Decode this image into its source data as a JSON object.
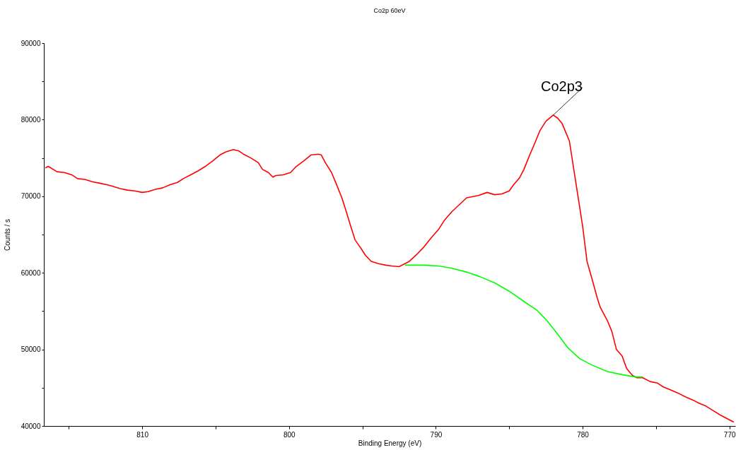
{
  "chart_data": {
    "type": "line",
    "title": "Co2p 60eV",
    "xlabel": "Binding Energy (eV)",
    "ylabel": "Counts / s",
    "xlim": [
      816.7,
      769.6
    ],
    "ylim": [
      40000,
      90000
    ],
    "xticks": [
      {
        "value": 815,
        "label": null
      },
      810,
      {
        "value": 805,
        "label": null
      },
      800,
      {
        "value": 795,
        "label": null
      },
      790,
      {
        "value": 785,
        "label": null
      },
      780,
      {
        "value": 775,
        "label": null
      },
      770
    ],
    "yticks": [
      40000,
      {
        "value": 45000,
        "label": null
      },
      50000,
      {
        "value": 55000,
        "label": null
      },
      60000,
      {
        "value": 65000,
        "label": null
      },
      70000,
      {
        "value": 75000,
        "label": null
      },
      80000,
      {
        "value": 85000,
        "label": null
      },
      90000
    ],
    "grid": false,
    "legend": false,
    "marker": "none",
    "line_style": "solid",
    "annotations": [
      {
        "text": "Co2p3",
        "x": 782.0,
        "y": 80600
      }
    ],
    "series": [
      {
        "color": "#ff0000",
        "x": [
          816.6,
          816.4,
          815.8,
          815.3,
          814.8,
          814.4,
          813.9,
          813.4,
          812.9,
          812.4,
          812.0,
          811.5,
          811.0,
          810.5,
          810.0,
          809.6,
          809.1,
          808.6,
          808.1,
          807.6,
          807.2,
          806.7,
          806.2,
          805.7,
          805.2,
          804.7,
          804.3,
          803.8,
          803.4,
          803.1,
          802.6,
          802.1,
          801.8,
          801.4,
          801.1,
          800.9,
          800.4,
          799.9,
          799.5,
          799.0,
          798.5,
          798.0,
          797.8,
          797.5,
          797.1,
          796.8,
          796.4,
          796.1,
          795.8,
          795.5,
          795.1,
          794.8,
          794.4,
          793.9,
          793.4,
          793.0,
          792.5,
          792.2,
          791.8,
          791.3,
          790.8,
          790.3,
          789.8,
          789.4,
          788.9,
          788.4,
          787.9,
          787.1,
          786.5,
          786.0,
          785.5,
          785.0,
          784.7,
          784.3,
          784.0,
          783.6,
          783.2,
          782.9,
          782.5,
          782.0,
          781.7,
          781.4,
          781.2,
          780.9,
          780.6,
          780.3,
          780.0,
          779.7,
          779.3,
          779.0,
          778.8,
          778.3,
          778.0,
          777.7,
          777.3,
          777.0,
          776.6,
          776.3,
          775.9,
          775.4,
          774.9,
          774.5,
          774.0,
          773.5,
          773.0,
          772.5,
          772.1,
          771.6,
          771.1,
          770.6,
          770.1,
          769.7
        ],
        "values": [
          73700,
          73900,
          73200,
          73100,
          72800,
          72300,
          72200,
          71900,
          71700,
          71500,
          71300,
          71000,
          70800,
          70700,
          70500,
          70600,
          70900,
          71100,
          71500,
          71800,
          72300,
          72800,
          73300,
          73900,
          74600,
          75400,
          75800,
          76100,
          75900,
          75500,
          75000,
          74400,
          73500,
          73100,
          72500,
          72700,
          72800,
          73100,
          73900,
          74600,
          75400,
          75500,
          75400,
          74300,
          73100,
          71700,
          69800,
          68000,
          66100,
          64300,
          63200,
          62300,
          61500,
          61200,
          61000,
          60900,
          60800,
          61100,
          61500,
          62400,
          63400,
          64600,
          65700,
          66900,
          68000,
          68900,
          69800,
          70100,
          70500,
          70200,
          70300,
          70700,
          71500,
          72400,
          73500,
          75400,
          77200,
          78600,
          79800,
          80600,
          80200,
          79500,
          78600,
          77200,
          73500,
          69800,
          66100,
          61500,
          58800,
          56700,
          55500,
          53700,
          52300,
          50000,
          49100,
          47500,
          46600,
          46300,
          46300,
          45800,
          45600,
          45100,
          44700,
          44300,
          43800,
          43400,
          43000,
          42600,
          42000,
          41400,
          40900,
          40500
        ]
      },
      {
        "color": "#00ff00",
        "x": [
          792.1,
          790.8,
          789.8,
          788.9,
          787.9,
          787.0,
          786.0,
          785.0,
          784.1,
          783.1,
          782.4,
          781.7,
          781.0,
          780.2,
          779.3,
          778.3,
          777.3,
          776.4,
          775.9
        ],
        "values": [
          61000,
          61000,
          60900,
          60600,
          60100,
          59500,
          58700,
          57600,
          56400,
          55100,
          53700,
          52000,
          50200,
          48800,
          47900,
          47100,
          46700,
          46400,
          46400
        ]
      }
    ]
  }
}
